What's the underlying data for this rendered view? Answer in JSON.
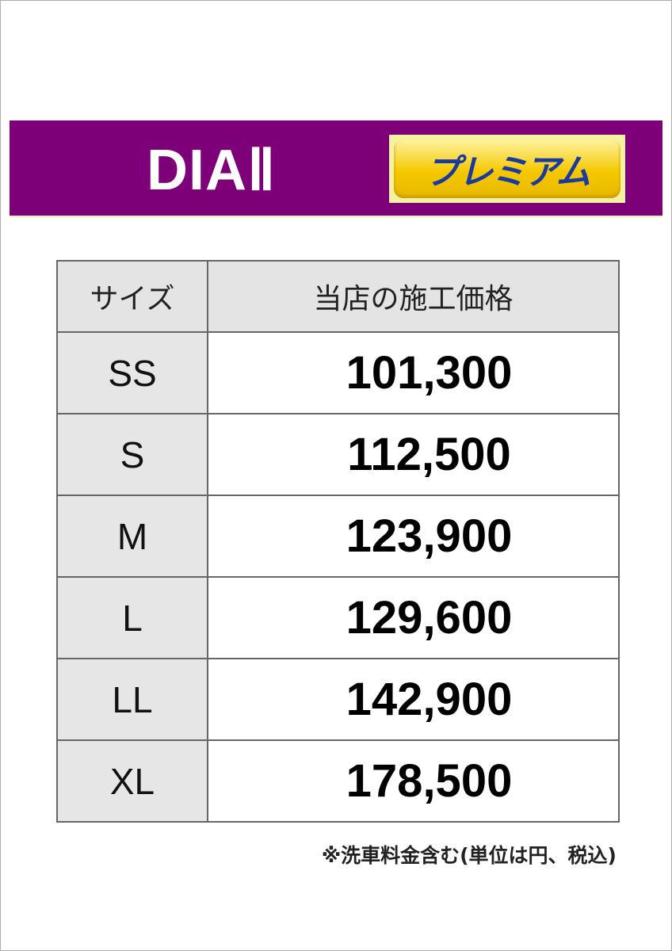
{
  "header": {
    "title": "DIAⅡ",
    "badge": "プレミアム",
    "banner_color": "#7d0079",
    "badge_color": "#f5c800"
  },
  "table": {
    "columns": [
      "サイズ",
      "当店の施工価格"
    ],
    "rows": [
      {
        "size": "SS",
        "price": "101,300"
      },
      {
        "size": "S",
        "price": "112,500"
      },
      {
        "size": "M",
        "price": "123,900"
      },
      {
        "size": "L",
        "price": "129,600"
      },
      {
        "size": "LL",
        "price": "142,900"
      },
      {
        "size": "XL",
        "price": "178,500"
      }
    ]
  },
  "note": "※洗車料金含む(単位は円、税込)"
}
